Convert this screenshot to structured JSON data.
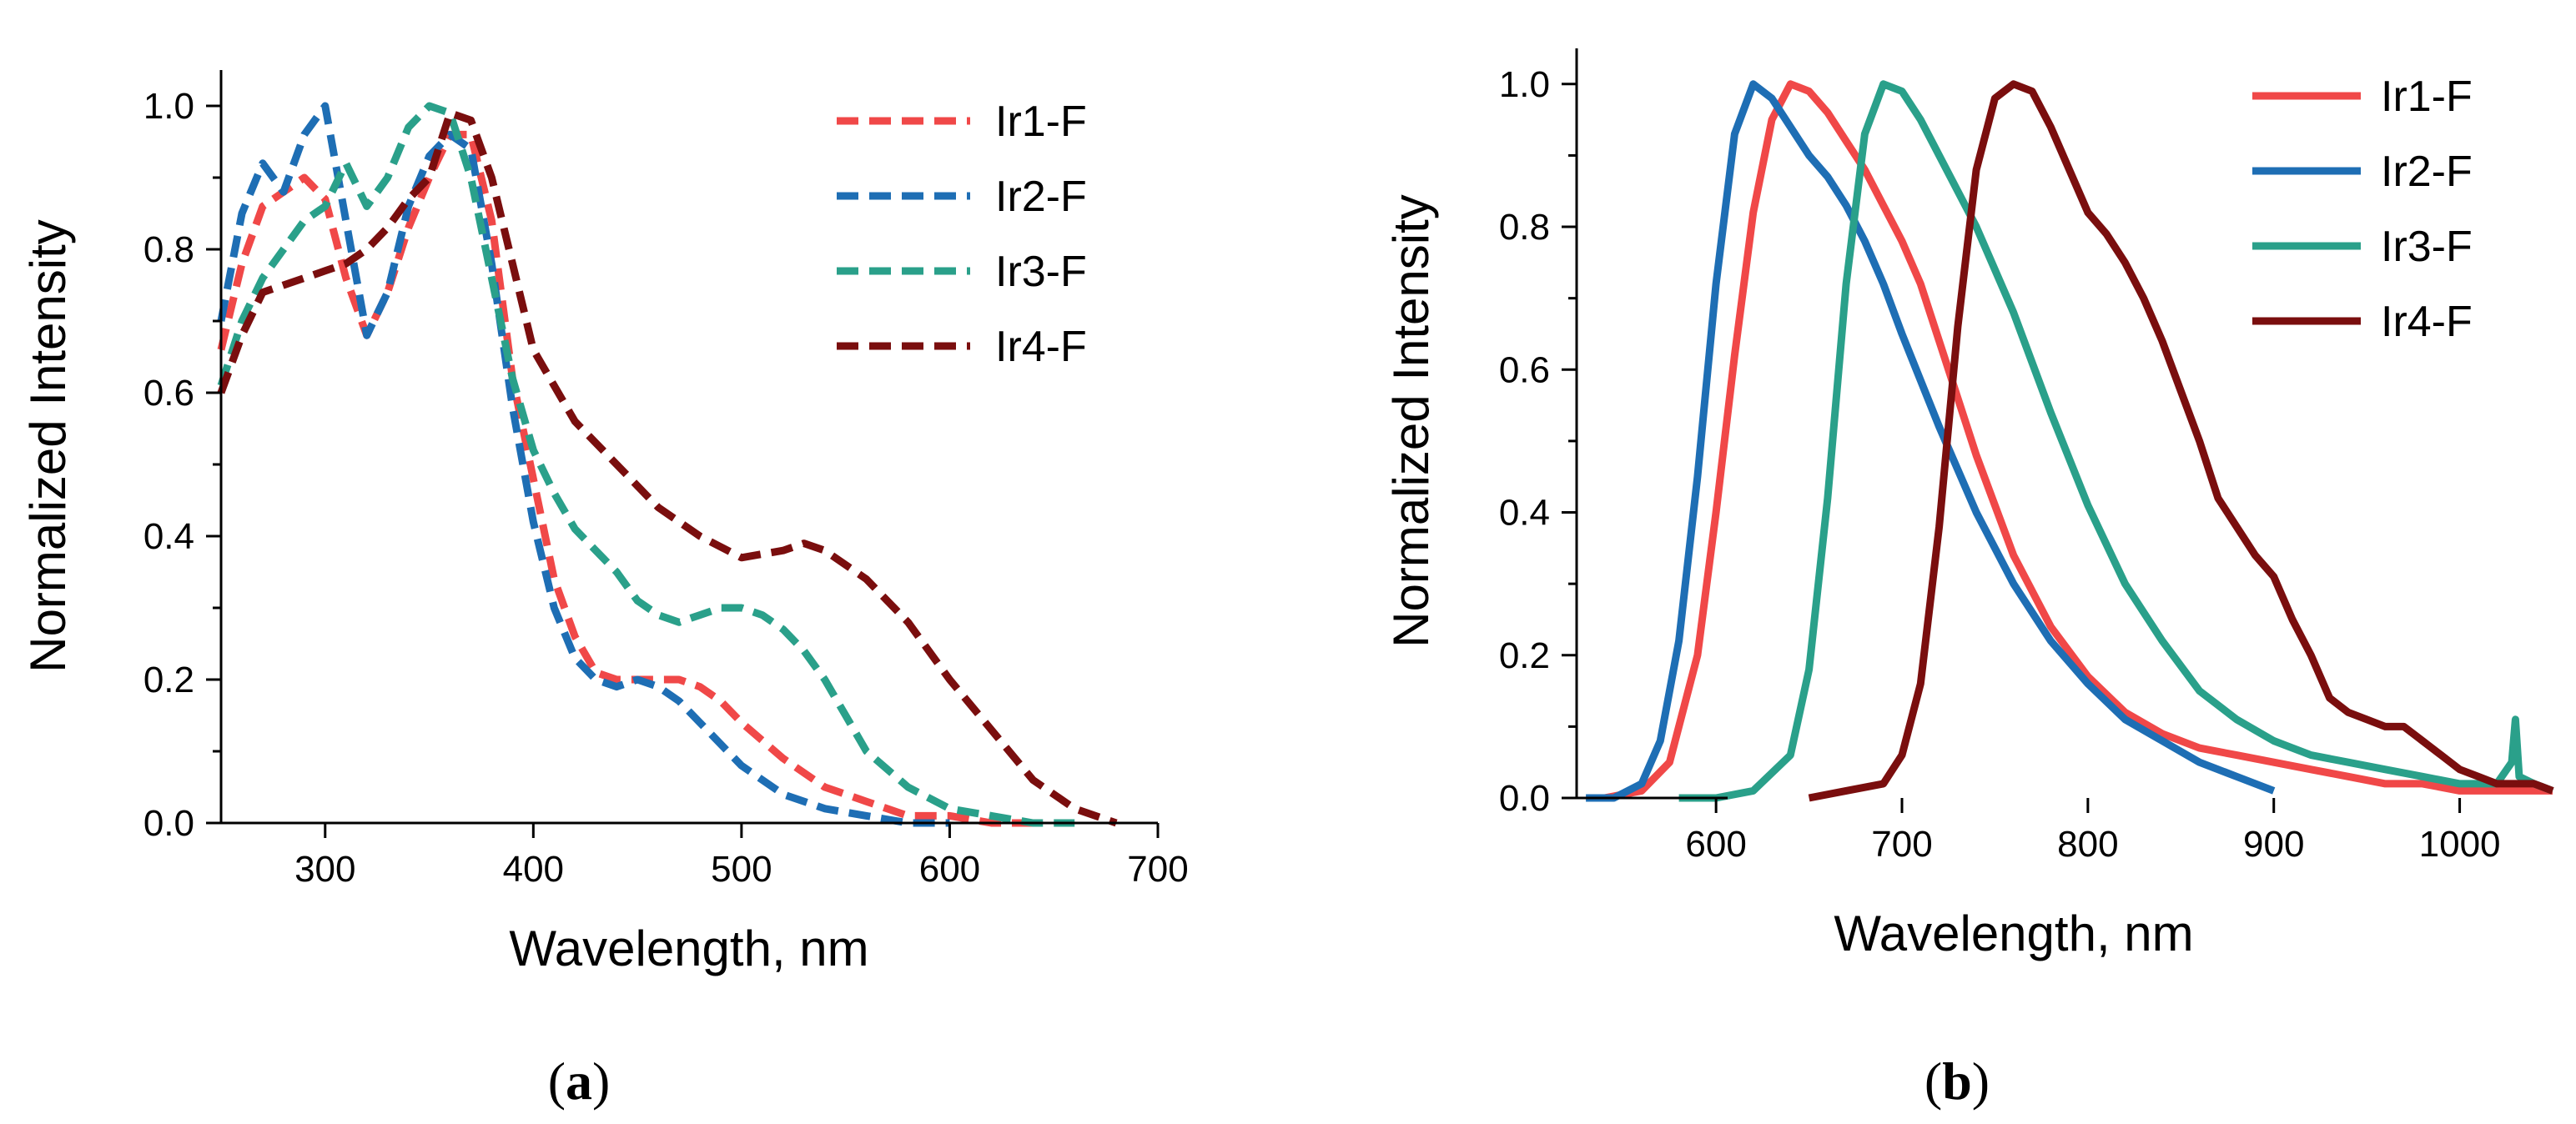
{
  "chart_data": [
    {
      "id": "a",
      "panel_label": "a",
      "type": "line",
      "line_style": "dashed",
      "xlabel": "Wavelength, nm",
      "ylabel": "Normalized Intensity",
      "xlim": [
        250,
        700
      ],
      "ylim": [
        0,
        1.05
      ],
      "xticks": [
        300,
        400,
        500,
        600,
        700
      ],
      "yticks": [
        0.0,
        0.2,
        0.4,
        0.6,
        0.8,
        1.0
      ],
      "ytick_labels": [
        "0.0",
        "0.2",
        "0.4",
        "0.6",
        "0.8",
        "1.0"
      ],
      "legend_position": "top-right",
      "series": [
        {
          "name": "Ir1-F",
          "color": "#f04848",
          "x": [
            250,
            260,
            270,
            280,
            290,
            300,
            310,
            320,
            330,
            340,
            350,
            360,
            370,
            380,
            390,
            400,
            410,
            420,
            430,
            440,
            450,
            460,
            470,
            480,
            490,
            500,
            520,
            540,
            560,
            580,
            600,
            620,
            640
          ],
          "y": [
            0.66,
            0.78,
            0.86,
            0.88,
            0.9,
            0.87,
            0.76,
            0.68,
            0.74,
            0.83,
            0.9,
            0.96,
            0.96,
            0.84,
            0.62,
            0.48,
            0.34,
            0.26,
            0.21,
            0.2,
            0.2,
            0.2,
            0.2,
            0.19,
            0.17,
            0.14,
            0.09,
            0.05,
            0.03,
            0.01,
            0.01,
            0.0,
            0.0
          ]
        },
        {
          "name": "Ir2-F",
          "color": "#1e6eb4",
          "x": [
            250,
            260,
            270,
            280,
            290,
            300,
            310,
            320,
            330,
            340,
            350,
            360,
            370,
            380,
            390,
            400,
            410,
            420,
            430,
            440,
            450,
            460,
            470,
            480,
            490,
            500,
            520,
            540,
            560,
            580,
            600
          ],
          "y": [
            0.7,
            0.85,
            0.92,
            0.88,
            0.96,
            1.0,
            0.84,
            0.68,
            0.74,
            0.86,
            0.93,
            0.96,
            0.94,
            0.78,
            0.58,
            0.42,
            0.3,
            0.23,
            0.2,
            0.19,
            0.2,
            0.19,
            0.17,
            0.14,
            0.11,
            0.08,
            0.04,
            0.02,
            0.01,
            0.0,
            0.0
          ]
        },
        {
          "name": "Ir3-F",
          "color": "#2aa08a",
          "x": [
            250,
            260,
            270,
            280,
            290,
            300,
            310,
            320,
            330,
            340,
            350,
            360,
            370,
            380,
            390,
            400,
            410,
            420,
            430,
            440,
            450,
            460,
            470,
            480,
            490,
            500,
            510,
            520,
            530,
            540,
            550,
            560,
            580,
            600,
            620,
            640,
            660
          ],
          "y": [
            0.61,
            0.7,
            0.76,
            0.8,
            0.84,
            0.86,
            0.92,
            0.86,
            0.9,
            0.97,
            1.0,
            0.99,
            0.9,
            0.76,
            0.62,
            0.52,
            0.46,
            0.41,
            0.38,
            0.35,
            0.31,
            0.29,
            0.28,
            0.29,
            0.3,
            0.3,
            0.29,
            0.27,
            0.24,
            0.2,
            0.15,
            0.1,
            0.05,
            0.02,
            0.01,
            0.0,
            0.0
          ]
        },
        {
          "name": "Ir4-F",
          "color": "#7a0e0e",
          "x": [
            250,
            260,
            270,
            280,
            290,
            300,
            310,
            320,
            330,
            340,
            350,
            360,
            370,
            380,
            390,
            400,
            420,
            440,
            460,
            480,
            500,
            520,
            530,
            540,
            560,
            580,
            600,
            620,
            640,
            660,
            680
          ],
          "y": [
            0.6,
            0.68,
            0.74,
            0.75,
            0.76,
            0.77,
            0.78,
            0.8,
            0.83,
            0.87,
            0.9,
            0.99,
            0.98,
            0.9,
            0.78,
            0.66,
            0.56,
            0.5,
            0.44,
            0.4,
            0.37,
            0.38,
            0.39,
            0.38,
            0.34,
            0.28,
            0.2,
            0.13,
            0.06,
            0.02,
            0.0
          ]
        }
      ]
    },
    {
      "id": "b",
      "panel_label": "b",
      "type": "line",
      "line_style": "solid",
      "xlabel": "Wavelength, nm",
      "ylabel": "Normalized Intensity",
      "xlim": [
        525,
        1050
      ],
      "ylim": [
        0,
        1.05
      ],
      "xticks": [
        600,
        700,
        800,
        900,
        1000
      ],
      "yticks": [
        0.0,
        0.2,
        0.4,
        0.6,
        0.8,
        1.0
      ],
      "ytick_labels": [
        "0.0",
        "0.2",
        "0.4",
        "0.6",
        "0.8",
        "1.0"
      ],
      "legend_position": "top-right",
      "series": [
        {
          "name": "Ir1-F",
          "color": "#f04848",
          "x": [
            540,
            560,
            575,
            590,
            600,
            610,
            620,
            630,
            640,
            650,
            660,
            670,
            680,
            690,
            700,
            710,
            720,
            730,
            740,
            750,
            760,
            780,
            800,
            820,
            840,
            860,
            880,
            900,
            920,
            940,
            960,
            980,
            1000,
            1020,
            1040,
            1050
          ],
          "y": [
            0.0,
            0.01,
            0.05,
            0.2,
            0.4,
            0.62,
            0.82,
            0.95,
            1.0,
            0.99,
            0.96,
            0.92,
            0.88,
            0.83,
            0.78,
            0.72,
            0.64,
            0.56,
            0.48,
            0.41,
            0.34,
            0.24,
            0.17,
            0.12,
            0.09,
            0.07,
            0.06,
            0.05,
            0.04,
            0.03,
            0.02,
            0.02,
            0.01,
            0.01,
            0.01,
            0.01
          ]
        },
        {
          "name": "Ir2-F",
          "color": "#1e6eb4",
          "x": [
            530,
            545,
            560,
            570,
            580,
            590,
            600,
            610,
            620,
            630,
            640,
            650,
            660,
            670,
            680,
            690,
            700,
            720,
            740,
            760,
            780,
            800,
            820,
            840,
            860,
            880,
            900
          ],
          "y": [
            0.0,
            0.0,
            0.02,
            0.08,
            0.22,
            0.45,
            0.72,
            0.93,
            1.0,
            0.98,
            0.94,
            0.9,
            0.87,
            0.83,
            0.78,
            0.72,
            0.65,
            0.52,
            0.4,
            0.3,
            0.22,
            0.16,
            0.11,
            0.08,
            0.05,
            0.03,
            0.01
          ]
        },
        {
          "name": "Ir3-F",
          "color": "#2aa08a",
          "x": [
            580,
            600,
            620,
            640,
            650,
            660,
            670,
            680,
            690,
            700,
            710,
            720,
            740,
            760,
            780,
            800,
            820,
            840,
            860,
            880,
            900,
            920,
            940,
            960,
            980,
            1000,
            1020,
            1028,
            1030,
            1032,
            1040,
            1050
          ],
          "y": [
            0.0,
            0.0,
            0.01,
            0.06,
            0.18,
            0.42,
            0.72,
            0.93,
            1.0,
            0.99,
            0.95,
            0.9,
            0.8,
            0.68,
            0.54,
            0.41,
            0.3,
            0.22,
            0.15,
            0.11,
            0.08,
            0.06,
            0.05,
            0.04,
            0.03,
            0.02,
            0.02,
            0.05,
            0.11,
            0.03,
            0.02,
            0.01
          ]
        },
        {
          "name": "Ir4-F",
          "color": "#7a0e0e",
          "x": [
            650,
            670,
            690,
            700,
            710,
            720,
            730,
            740,
            750,
            760,
            770,
            780,
            790,
            800,
            810,
            820,
            830,
            840,
            850,
            860,
            870,
            880,
            890,
            900,
            910,
            920,
            930,
            940,
            950,
            960,
            970,
            980,
            990,
            1000,
            1010,
            1020,
            1030,
            1040,
            1050
          ],
          "y": [
            0.0,
            0.01,
            0.02,
            0.06,
            0.16,
            0.38,
            0.66,
            0.88,
            0.98,
            1.0,
            0.99,
            0.94,
            0.88,
            0.82,
            0.79,
            0.75,
            0.7,
            0.64,
            0.57,
            0.5,
            0.42,
            0.38,
            0.34,
            0.31,
            0.25,
            0.2,
            0.14,
            0.12,
            0.11,
            0.1,
            0.1,
            0.08,
            0.06,
            0.04,
            0.03,
            0.02,
            0.02,
            0.02,
            0.01
          ]
        }
      ]
    }
  ]
}
